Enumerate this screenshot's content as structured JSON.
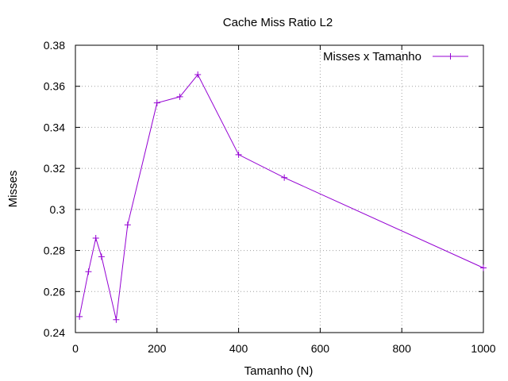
{
  "chart_data": {
    "type": "line",
    "title": "Cache Miss Ratio L2",
    "xlabel": "Tamanho (N)",
    "ylabel": "Misses",
    "xlim": [
      0,
      1000
    ],
    "ylim": [
      0.24,
      0.38
    ],
    "x_ticks": [
      0,
      200,
      400,
      600,
      800,
      1000
    ],
    "x_tick_labels": [
      "0",
      "200",
      "400",
      "600",
      "800",
      "1000"
    ],
    "y_ticks": [
      0.24,
      0.26,
      0.28,
      0.3,
      0.32,
      0.34,
      0.36,
      0.38
    ],
    "y_tick_labels": [
      "0.24",
      "0.26",
      "0.28",
      "0.3",
      "0.32",
      "0.34",
      "0.36",
      "0.38"
    ],
    "grid": true,
    "legend_position": "top-right",
    "series": [
      {
        "name": "Misses x Tamanho",
        "color": "#9400d3",
        "marker": "plus",
        "x": [
          10,
          32,
          50,
          64,
          100,
          128,
          200,
          256,
          300,
          400,
          512,
          1000
        ],
        "y": [
          0.2478,
          0.2697,
          0.286,
          0.277,
          0.2463,
          0.2925,
          0.3519,
          0.3549,
          0.3657,
          0.3267,
          0.3155,
          0.2715
        ]
      }
    ]
  }
}
